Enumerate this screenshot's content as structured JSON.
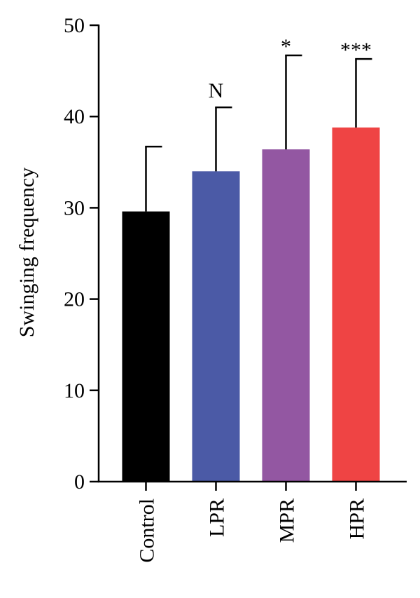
{
  "chart_data": {
    "type": "bar",
    "categories": [
      "Control",
      "LPR",
      "MPR",
      "HPR"
    ],
    "values": [
      29.6,
      34.0,
      36.4,
      38.8
    ],
    "error_upper": [
      36.7,
      41.0,
      46.7,
      46.3
    ],
    "significance": [
      "",
      "N",
      "*",
      "***"
    ],
    "colors": [
      "#000000",
      "#4b5aa6",
      "#9357a2",
      "#ef4444"
    ],
    "ylabel": "Swinging frequency",
    "xlabel": "",
    "ylim": [
      0,
      50
    ],
    "yticks": [
      0,
      10,
      20,
      30,
      40,
      50
    ],
    "grid": false
  }
}
